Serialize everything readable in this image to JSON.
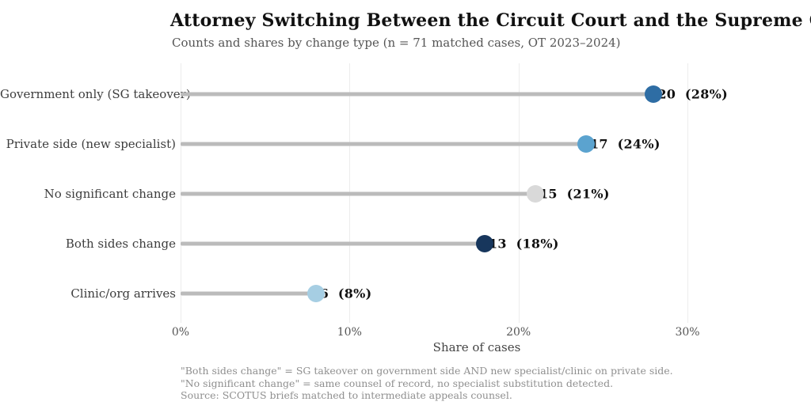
{
  "header": {
    "title": "Attorney Switching Between the Circuit Court and the Supreme Court",
    "subtitle": "Counts and shares by change type (n = 71 matched cases, OT 2023–2024)"
  },
  "chart_data": {
    "type": "bar",
    "variant": "lollipop_horizontal",
    "title": "Attorney Switching Between the Circuit Court and the Supreme Court",
    "subtitle": "Counts and shares by change type (n = 71 matched cases, OT 2023–2024)",
    "xlabel": "Share of cases",
    "ylabel": "",
    "xlim": [
      0,
      30
    ],
    "x_ticks": [
      {
        "value": 0,
        "label": "0%"
      },
      {
        "value": 10,
        "label": "10%"
      },
      {
        "value": 20,
        "label": "20%"
      },
      {
        "value": 30,
        "label": "30%"
      }
    ],
    "grid": "vertical",
    "legend": "none",
    "rows": [
      {
        "category": "Government only (SG takeover)",
        "count": 20,
        "share_pct": 28,
        "value_label": "20  (28%)",
        "dot_color": "#2e6da4"
      },
      {
        "category": "Private side (new specialist)",
        "count": 17,
        "share_pct": 24,
        "value_label": "17  (24%)",
        "dot_color": "#5ba3cf"
      },
      {
        "category": "No significant change",
        "count": 15,
        "share_pct": 21,
        "value_label": "15  (21%)",
        "dot_color": "#d9d9d9"
      },
      {
        "category": "Both sides change",
        "count": 13,
        "share_pct": 18,
        "value_label": "13  (18%)",
        "dot_color": "#17365c"
      },
      {
        "category": "Clinic/org arrives",
        "count": 6,
        "share_pct": 8,
        "value_label": "6  (8%)",
        "dot_color": "#a6cee3"
      }
    ],
    "stem_color": "#bbbbbb",
    "gridline_color": "#ececec"
  },
  "footnotes": {
    "line1": "\"Both sides change\" = SG takeover on government side AND new specialist/clinic on private side.",
    "line2": "\"No significant change\" = same counsel of record, no specialist substitution detected.",
    "line3": "Source: SCOTUS briefs matched to intermediate appeals counsel."
  }
}
